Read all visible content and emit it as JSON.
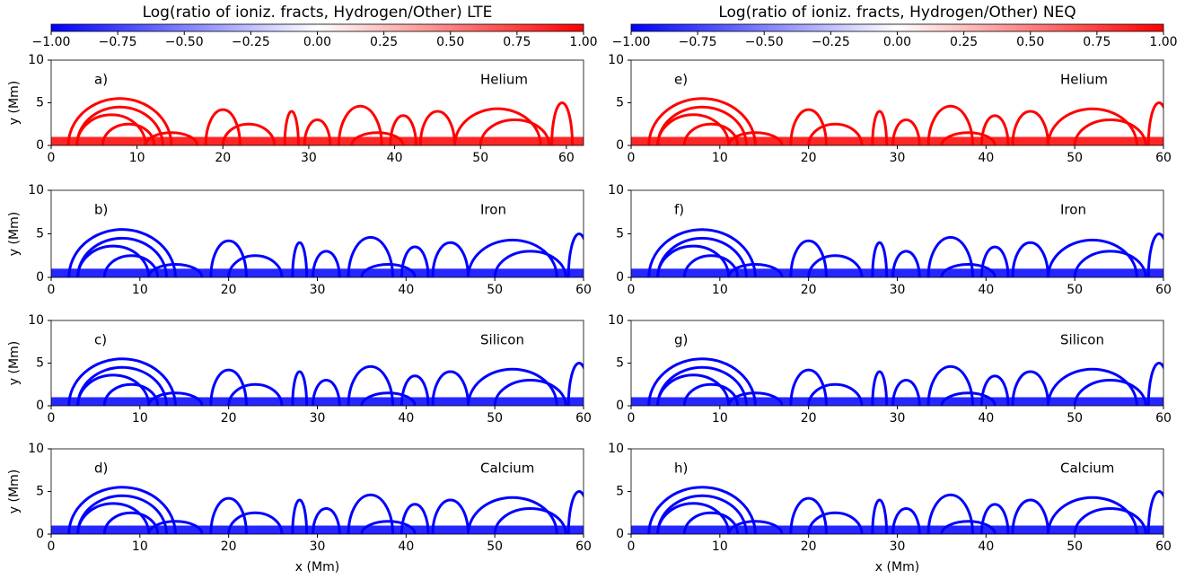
{
  "chart_data": [
    {
      "type": "colorbar",
      "title": "Log(ratio of ioniz. fracts, Hydrogen/Other) LTE",
      "clim": [
        -1,
        1
      ],
      "cmap": [
        "#0000ff",
        "#ffffff",
        "#ff0000"
      ],
      "cticks": [
        {
          "value": -1,
          "label": "−1.00"
        },
        {
          "value": -0.75,
          "label": "−0.75"
        },
        {
          "value": -0.5,
          "label": "−0.50"
        },
        {
          "value": -0.25,
          "label": "−0.25"
        },
        {
          "value": 0,
          "label": "0.00"
        },
        {
          "value": 0.25,
          "label": "0.25"
        },
        {
          "value": 0.5,
          "label": "0.50"
        },
        {
          "value": 0.75,
          "label": "0.75"
        },
        {
          "value": 1,
          "label": "1.00"
        }
      ]
    },
    {
      "type": "colorbar",
      "title": "Log(ratio of ioniz. fracts, Hydrogen/Other) NEQ",
      "clim": [
        -1,
        1
      ],
      "cmap": [
        "#0000ff",
        "#ffffff",
        "#ff0000"
      ],
      "cticks": [
        {
          "value": -1,
          "label": "−1.00"
        },
        {
          "value": -0.75,
          "label": "−0.75"
        },
        {
          "value": -0.5,
          "label": "−0.50"
        },
        {
          "value": -0.25,
          "label": "−0.25"
        },
        {
          "value": 0,
          "label": "0.00"
        },
        {
          "value": 0.25,
          "label": "0.25"
        },
        {
          "value": 0.5,
          "label": "0.50"
        },
        {
          "value": 0.75,
          "label": "0.75"
        },
        {
          "value": 1,
          "label": "1.00"
        }
      ]
    },
    {
      "type": "map",
      "panel_label": "a)",
      "element": "Helium",
      "ylabel": "y (Mm)",
      "color": "#ff0000",
      "xlim": [
        0,
        62
      ],
      "xticks": [
        0,
        10,
        20,
        30,
        40,
        50,
        60
      ],
      "ylim": [
        0,
        10
      ],
      "yticks": [
        0,
        5,
        10
      ]
    },
    {
      "type": "map",
      "panel_label": "e)",
      "element": "Helium",
      "color": "#ff0000",
      "xlim": [
        0,
        60
      ],
      "xticks": [
        0,
        10,
        20,
        30,
        40,
        50,
        60
      ],
      "ylim": [
        0,
        10
      ],
      "yticks": [
        0,
        5,
        10
      ]
    },
    {
      "type": "map",
      "panel_label": "b)",
      "element": "Iron",
      "ylabel": "y (Mm)",
      "color": "#0000ff",
      "xlim": [
        0,
        60
      ],
      "xticks": [
        0,
        10,
        20,
        30,
        40,
        50,
        60
      ],
      "ylim": [
        0,
        10
      ],
      "yticks": [
        0,
        5,
        10
      ]
    },
    {
      "type": "map",
      "panel_label": "f)",
      "element": "Iron",
      "color": "#0000ff",
      "xlim": [
        0,
        60
      ],
      "xticks": [
        0,
        10,
        20,
        30,
        40,
        50,
        60
      ],
      "ylim": [
        0,
        10
      ],
      "yticks": [
        0,
        5,
        10
      ]
    },
    {
      "type": "map",
      "panel_label": "c)",
      "element": "Silicon",
      "ylabel": "y (Mm)",
      "color": "#0000ff",
      "xlim": [
        0,
        60
      ],
      "xticks": [
        0,
        10,
        20,
        30,
        40,
        50,
        60
      ],
      "ylim": [
        0,
        10
      ],
      "yticks": [
        0,
        5,
        10
      ]
    },
    {
      "type": "map",
      "panel_label": "g)",
      "element": "Silicon",
      "color": "#0000ff",
      "xlim": [
        0,
        60
      ],
      "xticks": [
        0,
        10,
        20,
        30,
        40,
        50,
        60
      ],
      "ylim": [
        0,
        10
      ],
      "yticks": [
        0,
        5,
        10
      ]
    },
    {
      "type": "map",
      "panel_label": "d)",
      "element": "Calcium",
      "ylabel": "y (Mm)",
      "xlabel": "x (Mm)",
      "color": "#0000ff",
      "xlim": [
        0,
        60
      ],
      "xticks": [
        0,
        10,
        20,
        30,
        40,
        50,
        60
      ],
      "ylim": [
        0,
        10
      ],
      "yticks": [
        0,
        5,
        10
      ]
    },
    {
      "type": "map",
      "panel_label": "h)",
      "element": "Calcium",
      "xlabel": "x (Mm)",
      "color": "#0000ff",
      "xlim": [
        0,
        60
      ],
      "xticks": [
        0,
        10,
        20,
        30,
        40,
        50,
        60
      ],
      "ylim": [
        0,
        10
      ],
      "yticks": [
        0,
        5,
        10
      ]
    }
  ]
}
